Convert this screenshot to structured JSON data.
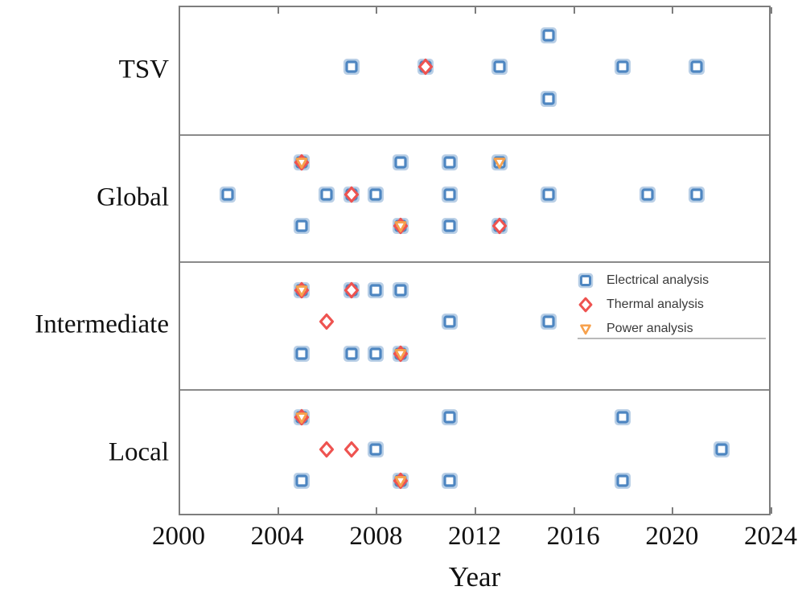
{
  "figure": {
    "background": "#ffffff"
  },
  "chart_data": {
    "type": "scatter",
    "title": "",
    "xlabel": "Year",
    "ylabel": "",
    "xlim": [
      2000,
      2024
    ],
    "x_ticks": [
      2000,
      2004,
      2008,
      2012,
      2016,
      2020,
      2024
    ],
    "x_tick_labels": [
      "2000",
      "2004",
      "2008",
      "2012",
      "2016",
      "2020",
      "2024"
    ],
    "categories": [
      "TSV",
      "Global",
      "Intermediate",
      "Local"
    ],
    "grid": false,
    "row_separators": true,
    "legend_position": "inside-right-middle",
    "colors": {
      "electrical": "#4e86c1",
      "electrical_halo": "#b9cfe6",
      "thermal": "#ee5350",
      "power": "#f7a14c",
      "frame": "#7d7d7d",
      "text": "#111111"
    },
    "legend": [
      {
        "label": "Electrical analysis",
        "marker": "square"
      },
      {
        "label": "Thermal analysis",
        "marker": "diamond"
      },
      {
        "label": "Power analysis",
        "marker": "triangle-down"
      }
    ],
    "points": [
      {
        "category": "TSV",
        "year": 2007,
        "sub": 0,
        "markers": [
          "square"
        ]
      },
      {
        "category": "TSV",
        "year": 2010,
        "sub": 0,
        "markers": [
          "square",
          "diamond"
        ]
      },
      {
        "category": "TSV",
        "year": 2013,
        "sub": 0,
        "markers": [
          "square"
        ]
      },
      {
        "category": "TSV",
        "year": 2015,
        "sub": -1,
        "markers": [
          "square"
        ]
      },
      {
        "category": "TSV",
        "year": 2015,
        "sub": 1,
        "markers": [
          "square"
        ]
      },
      {
        "category": "TSV",
        "year": 2018,
        "sub": 0,
        "markers": [
          "square"
        ]
      },
      {
        "category": "TSV",
        "year": 2021,
        "sub": 0,
        "markers": [
          "square"
        ]
      },
      {
        "category": "Global",
        "year": 2005,
        "sub": -1,
        "markers": [
          "square",
          "diamond",
          "triangle-down"
        ]
      },
      {
        "category": "Global",
        "year": 2009,
        "sub": -1,
        "markers": [
          "square"
        ]
      },
      {
        "category": "Global",
        "year": 2011,
        "sub": -1,
        "markers": [
          "square"
        ]
      },
      {
        "category": "Global",
        "year": 2013,
        "sub": -1,
        "markers": [
          "square",
          "triangle-down"
        ]
      },
      {
        "category": "Global",
        "year": 2002,
        "sub": 0,
        "markers": [
          "square"
        ]
      },
      {
        "category": "Global",
        "year": 2006,
        "sub": 0,
        "markers": [
          "square"
        ]
      },
      {
        "category": "Global",
        "year": 2007,
        "sub": 0,
        "markers": [
          "square",
          "diamond"
        ]
      },
      {
        "category": "Global",
        "year": 2008,
        "sub": 0,
        "markers": [
          "square"
        ]
      },
      {
        "category": "Global",
        "year": 2011,
        "sub": 0,
        "markers": [
          "square"
        ]
      },
      {
        "category": "Global",
        "year": 2015,
        "sub": 0,
        "markers": [
          "square"
        ]
      },
      {
        "category": "Global",
        "year": 2019,
        "sub": 0,
        "markers": [
          "square"
        ]
      },
      {
        "category": "Global",
        "year": 2021,
        "sub": 0,
        "markers": [
          "square"
        ]
      },
      {
        "category": "Global",
        "year": 2005,
        "sub": 1,
        "markers": [
          "square"
        ]
      },
      {
        "category": "Global",
        "year": 2009,
        "sub": 1,
        "markers": [
          "square",
          "diamond",
          "triangle-down"
        ]
      },
      {
        "category": "Global",
        "year": 2011,
        "sub": 1,
        "markers": [
          "square"
        ]
      },
      {
        "category": "Global",
        "year": 2013,
        "sub": 1,
        "markers": [
          "square",
          "diamond"
        ]
      },
      {
        "category": "Intermediate",
        "year": 2005,
        "sub": -1,
        "markers": [
          "square",
          "diamond",
          "triangle-down"
        ]
      },
      {
        "category": "Intermediate",
        "year": 2007,
        "sub": -1,
        "markers": [
          "square",
          "diamond"
        ]
      },
      {
        "category": "Intermediate",
        "year": 2008,
        "sub": -1,
        "markers": [
          "square"
        ]
      },
      {
        "category": "Intermediate",
        "year": 2009,
        "sub": -1,
        "markers": [
          "square"
        ]
      },
      {
        "category": "Intermediate",
        "year": 2006,
        "sub": 0,
        "markers": [
          "diamond"
        ]
      },
      {
        "category": "Intermediate",
        "year": 2011,
        "sub": 0,
        "markers": [
          "square"
        ]
      },
      {
        "category": "Intermediate",
        "year": 2015,
        "sub": 0,
        "markers": [
          "square"
        ]
      },
      {
        "category": "Intermediate",
        "year": 2005,
        "sub": 1,
        "markers": [
          "square"
        ]
      },
      {
        "category": "Intermediate",
        "year": 2007,
        "sub": 1,
        "markers": [
          "square"
        ]
      },
      {
        "category": "Intermediate",
        "year": 2008,
        "sub": 1,
        "markers": [
          "square"
        ]
      },
      {
        "category": "Intermediate",
        "year": 2009,
        "sub": 1,
        "markers": [
          "square",
          "diamond",
          "triangle-down"
        ]
      },
      {
        "category": "Local",
        "year": 2005,
        "sub": -1,
        "markers": [
          "square",
          "diamond",
          "triangle-down"
        ]
      },
      {
        "category": "Local",
        "year": 2011,
        "sub": -1,
        "markers": [
          "square"
        ]
      },
      {
        "category": "Local",
        "year": 2018,
        "sub": -1,
        "markers": [
          "square"
        ]
      },
      {
        "category": "Local",
        "year": 2006,
        "sub": 0,
        "markers": [
          "diamond"
        ]
      },
      {
        "category": "Local",
        "year": 2007,
        "sub": 0,
        "markers": [
          "diamond"
        ]
      },
      {
        "category": "Local",
        "year": 2008,
        "sub": 0,
        "markers": [
          "square"
        ]
      },
      {
        "category": "Local",
        "year": 2022,
        "sub": 0,
        "markers": [
          "square"
        ]
      },
      {
        "category": "Local",
        "year": 2005,
        "sub": 1,
        "markers": [
          "square"
        ]
      },
      {
        "category": "Local",
        "year": 2009,
        "sub": 1,
        "markers": [
          "square",
          "diamond",
          "triangle-down"
        ]
      },
      {
        "category": "Local",
        "year": 2011,
        "sub": 1,
        "markers": [
          "square"
        ]
      },
      {
        "category": "Local",
        "year": 2018,
        "sub": 1,
        "markers": [
          "square"
        ]
      }
    ]
  }
}
